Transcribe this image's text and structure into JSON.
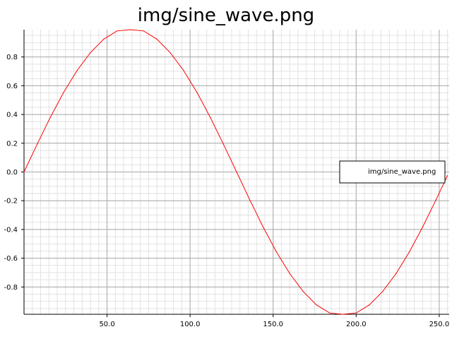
{
  "chart_data": {
    "type": "line",
    "title": "img/sine_wave.png",
    "xlabel": "",
    "ylabel": "",
    "xlim": [
      0,
      256
    ],
    "ylim": [
      -0.99,
      0.99
    ],
    "x_ticks": [
      50,
      100,
      150,
      200,
      250
    ],
    "x_tick_labels": [
      "50.0",
      "100.0",
      "150.0",
      "200.0",
      "250.0"
    ],
    "y_ticks": [
      0.8,
      0.6,
      0.4,
      0.2,
      0.0,
      -0.2,
      -0.4,
      -0.6,
      -0.8
    ],
    "y_tick_labels": [
      "0.8",
      "0.6",
      "0.4",
      "0.2",
      "0.0",
      "-0.2",
      "-0.4",
      "-0.6",
      "-0.8"
    ],
    "grid": true,
    "legend_position": "right",
    "series": [
      {
        "name": "img/sine_wave.png",
        "color": "#ff0000",
        "x": [
          0,
          8,
          16,
          24,
          32,
          40,
          48,
          56,
          64,
          72,
          80,
          88,
          96,
          104,
          112,
          120,
          128,
          136,
          144,
          152,
          160,
          168,
          176,
          184,
          192,
          200,
          208,
          216,
          224,
          232,
          240,
          248,
          255
        ],
        "y": [
          0.0,
          0.195,
          0.383,
          0.556,
          0.707,
          0.831,
          0.924,
          0.981,
          0.99,
          0.981,
          0.924,
          0.831,
          0.707,
          0.556,
          0.383,
          0.195,
          0.0,
          -0.195,
          -0.383,
          -0.556,
          -0.707,
          -0.831,
          -0.924,
          -0.981,
          -0.99,
          -0.981,
          -0.924,
          -0.831,
          -0.707,
          -0.556,
          -0.383,
          -0.195,
          -0.025
        ]
      }
    ]
  }
}
